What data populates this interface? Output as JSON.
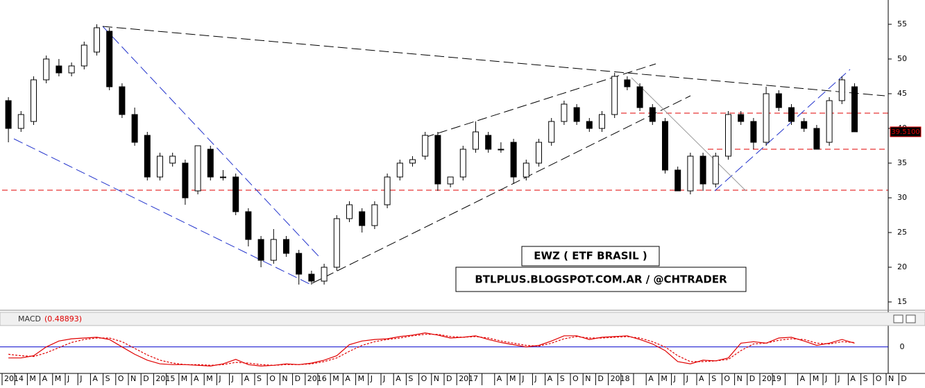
{
  "chart_data": {
    "type": "candlestick",
    "annotations": [
      "EWZ ( ETF BRASIL )",
      "BTLPLUS.BLOGSPOT.COM.AR / @CHTRADER"
    ],
    "last_price_label": "39.5100",
    "categories": [
      "2014",
      null,
      "M",
      "A",
      "M",
      "J",
      "J",
      "A",
      "S",
      "O",
      "N",
      "D",
      "2015",
      null,
      "M",
      "A",
      "M",
      "J",
      "J",
      "A",
      "S",
      "O",
      "N",
      "D",
      "2016",
      null,
      "M",
      "A",
      "M",
      "J",
      "J",
      "A",
      "S",
      "O",
      "N",
      "D",
      "2017",
      null,
      null,
      "A",
      "M",
      "J",
      "J",
      "A",
      "S",
      "O",
      "N",
      "D",
      "2018",
      null,
      null,
      "A",
      "M",
      "J",
      "J",
      "A",
      "S",
      "O",
      "N",
      "D",
      "2019",
      null,
      null,
      "A",
      "M",
      "J",
      "J",
      "A",
      "S",
      "O",
      "N",
      "D"
    ],
    "open": [
      44,
      40,
      41,
      47,
      49,
      48,
      49,
      51,
      54,
      46,
      42,
      39,
      33,
      35,
      35,
      31,
      37,
      33,
      33,
      28,
      24,
      21,
      24,
      22,
      19,
      18,
      20,
      27,
      28,
      26,
      29,
      33,
      35,
      36,
      39,
      32,
      33,
      37,
      39,
      37,
      38,
      33,
      35,
      38,
      41,
      43,
      41,
      40,
      42,
      47,
      46,
      43,
      41,
      34,
      31,
      36,
      32,
      36,
      42,
      41,
      38,
      45,
      43,
      41,
      40,
      38,
      44,
      46,
      null,
      null,
      null,
      null
    ],
    "high": [
      44.5,
      42.5,
      47.5,
      50.5,
      50,
      49.5,
      52.5,
      55,
      54.5,
      46.5,
      43,
      39.5,
      36.5,
      36.5,
      35.5,
      37.5,
      37.5,
      34,
      33.5,
      28.5,
      24.5,
      25.5,
      24.5,
      22.5,
      19.5,
      20.5,
      27.5,
      29.5,
      28.5,
      29.5,
      33.5,
      35.5,
      36,
      39.5,
      39.5,
      33,
      37.5,
      41,
      39.5,
      38,
      38.5,
      35.5,
      38.5,
      41.5,
      44,
      43.5,
      41.5,
      42.5,
      48,
      47.5,
      46.5,
      43.5,
      41.5,
      34.5,
      36.5,
      36.5,
      36.5,
      42.5,
      42.5,
      41.5,
      46,
      45.5,
      43.5,
      41.5,
      40.5,
      44.5,
      47.5,
      46.5,
      null,
      null,
      null,
      null
    ],
    "low": [
      38,
      39.5,
      40.5,
      46.5,
      47.5,
      47.5,
      48.5,
      50.5,
      45.5,
      41.5,
      37.5,
      32.5,
      32.5,
      34.5,
      29,
      30.5,
      32.5,
      32.5,
      27.5,
      23,
      20,
      20.5,
      21.5,
      17.5,
      17.5,
      17.5,
      19.5,
      26.5,
      25,
      25.5,
      28.5,
      32.5,
      34.5,
      35.5,
      31,
      31.5,
      32.5,
      36.5,
      36.5,
      36.5,
      32,
      32.5,
      34.5,
      37.5,
      40.5,
      40.5,
      39.5,
      39.5,
      41.5,
      45.5,
      42.5,
      40.5,
      33.5,
      31,
      30.5,
      31,
      31.5,
      35.5,
      40.5,
      37,
      37.5,
      42.5,
      40.5,
      39.5,
      37,
      37.5,
      43.5,
      39.5,
      null,
      null,
      null,
      null
    ],
    "close": [
      40,
      42,
      47,
      50,
      48,
      49,
      52,
      54.5,
      46,
      42,
      38,
      33,
      36,
      36,
      30,
      37.5,
      33,
      33,
      28,
      24,
      21,
      24,
      22,
      19,
      18,
      20,
      27,
      29,
      26,
      29,
      33,
      35,
      35.5,
      39,
      32,
      33,
      37,
      39.5,
      37,
      37,
      33,
      35,
      38,
      41,
      43.5,
      41,
      40,
      42,
      47.5,
      46,
      43,
      41,
      34,
      31,
      36,
      32,
      36,
      42,
      41,
      38,
      45,
      43,
      41,
      40,
      37,
      44,
      47,
      39.51,
      null,
      null,
      null,
      null
    ],
    "ylim": [
      13.8,
      58.5
    ],
    "yticks": [
      15,
      20,
      25,
      30,
      35,
      40,
      45,
      50,
      55
    ],
    "macd": {
      "title": "MACD",
      "value_label": "(0.48893)",
      "ylim": [
        -3.6,
        2.8
      ],
      "yticks": [
        0
      ],
      "macd": [
        -1.5,
        -1.5,
        -1.2,
        0,
        0.8,
        1.1,
        1.2,
        1.3,
        1.0,
        0,
        -1,
        -1.8,
        -2.3,
        -2.4,
        -2.4,
        -2.5,
        -2.6,
        -2.3,
        -1.7,
        -2.4,
        -2.6,
        -2.5,
        -2.3,
        -2.4,
        -2.2,
        -1.8,
        -1.2,
        0.3,
        0.8,
        1,
        1.1,
        1.4,
        1.6,
        1.9,
        1.6,
        1.2,
        1.3,
        1.5,
        1.0,
        0.6,
        0.3,
        0,
        0.2,
        0.8,
        1.5,
        1.5,
        1.0,
        1.3,
        1.4,
        1.5,
        1.0,
        0.4,
        -0.5,
        -2.0,
        -2.3,
        -1.8,
        -1.9,
        -1.5,
        0.5,
        0.7,
        0.5,
        1.2,
        1.3,
        0.8,
        0.2,
        0.5,
        1.0,
        0.5,
        null,
        null,
        null,
        null
      ],
      "signal": [
        -1.0,
        -1.2,
        -1.3,
        -0.8,
        -0.1,
        0.6,
        1.0,
        1.2,
        1.2,
        0.7,
        -0.2,
        -1.1,
        -1.8,
        -2.2,
        -2.4,
        -2.4,
        -2.5,
        -2.4,
        -2.1,
        -2.2,
        -2.4,
        -2.5,
        -2.4,
        -2.4,
        -2.3,
        -2.0,
        -1.5,
        -0.6,
        0.2,
        0.7,
        1.0,
        1.2,
        1.5,
        1.7,
        1.7,
        1.4,
        1.3,
        1.4,
        1.2,
        0.8,
        0.5,
        0.2,
        0.1,
        0.5,
        1.1,
        1.4,
        1.2,
        1.2,
        1.3,
        1.4,
        1.2,
        0.7,
        0.0,
        -1.2,
        -2.0,
        -2.0,
        -1.9,
        -1.7,
        -0.5,
        0.4,
        0.5,
        0.9,
        1.1,
        1.0,
        0.5,
        0.4,
        0.7,
        0.6,
        null,
        null,
        null,
        null
      ],
      "color": "#e00000",
      "zero_color": "#0000cc"
    }
  }
}
